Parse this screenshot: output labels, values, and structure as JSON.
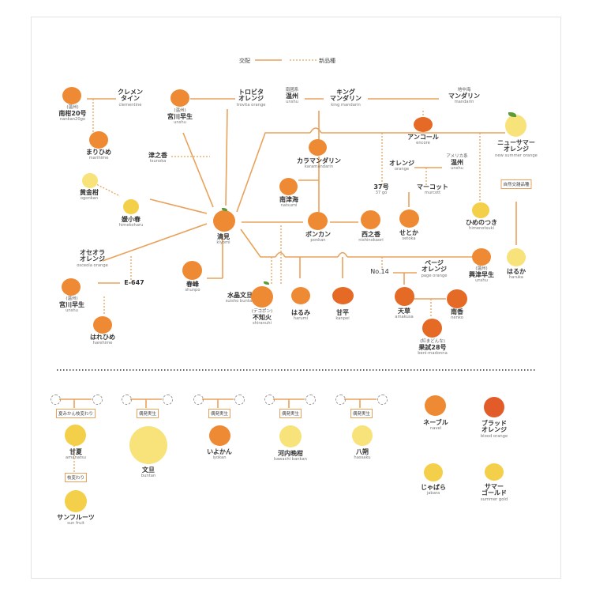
{
  "legend": {
    "cross_label": "交配",
    "variety_label": "新品種"
  },
  "colors": {
    "line": "#e9a25b",
    "orange": "#ef8a34",
    "deep": "#e46a26",
    "yellow": "#f4cf4a",
    "pale": "#f8e27a",
    "blood": "#e25c2a"
  },
  "upper": [
    {
      "id": "nankan20",
      "pre": "(温州)",
      "ja": "南柑20号",
      "ro": "nankan20go",
      "color": "orange"
    },
    {
      "id": "clementine",
      "ja": "クレメン\nタイン",
      "ro": "clementine"
    },
    {
      "id": "marihime",
      "ja": "まりひめ",
      "ro": "marihime",
      "color": "orange"
    },
    {
      "id": "miyagawa1",
      "pre": "(温州)",
      "ja": "宮川早生",
      "ro": "unshu",
      "color": "orange"
    },
    {
      "id": "trovita",
      "ja": "トロビタ\nオレンジ",
      "ro": "trovita orange"
    },
    {
      "id": "tsunoka",
      "ja": "津之香",
      "ro": "tsunoka"
    },
    {
      "id": "ogonkan",
      "ja": "黄金柑",
      "ro": "ogonkan",
      "color": "pale"
    },
    {
      "id": "himekoharu",
      "ja": "媛小春",
      "ro": "himekoharu",
      "color": "yellow"
    },
    {
      "id": "kiyomi",
      "ja": "清見",
      "ro": "kiyomi",
      "color": "orange"
    },
    {
      "id": "osceola",
      "ja": "オセオラ\nオレンジ",
      "ro": "osceola orange"
    },
    {
      "id": "e647",
      "ja": "E-647",
      "ro": ""
    },
    {
      "id": "miyagawa2",
      "pre": "(温州)",
      "ja": "宮川早生",
      "ro": "unshu",
      "color": "orange"
    },
    {
      "id": "harehime",
      "ja": "はれひめ",
      "ro": "harehime",
      "color": "orange"
    },
    {
      "id": "shunpo",
      "ja": "春峰",
      "ro": "shunpo",
      "color": "orange"
    },
    {
      "id": "suisho",
      "ja": "水晶文旦",
      "ro": "suisho buntan"
    },
    {
      "id": "nanshu_unshu",
      "pre": "南國系",
      "ja": "温州",
      "ro": "unshu"
    },
    {
      "id": "king",
      "ja": "キング\nマンダリン",
      "ro": "king mandarin"
    },
    {
      "id": "chichukai",
      "pre": "地中海",
      "ja": "マンダリン",
      "ro": "mandarin"
    },
    {
      "id": "encore",
      "ja": "アンコール",
      "ro": "encore",
      "color": "deep"
    },
    {
      "id": "newsummer",
      "ja": "ニューサマー\nオレンジ",
      "ro": "new summer orange",
      "color": "pale"
    },
    {
      "id": "karamandarin",
      "ja": "カラマンダリン",
      "ro": "karamandarin",
      "color": "orange"
    },
    {
      "id": "orange",
      "ja": "オレンジ",
      "ro": "orange"
    },
    {
      "id": "america_unshu",
      "pre": "アメリカ系",
      "ja": "温州",
      "ro": "unshu"
    },
    {
      "id": "go37",
      "ja": "37号",
      "ro": "37 go"
    },
    {
      "id": "murcott",
      "ja": "マーコット",
      "ro": "murcott"
    },
    {
      "id": "natsumi",
      "ja": "南津海",
      "ro": "natsumi",
      "color": "orange"
    },
    {
      "id": "ponkan",
      "ja": "ポンカン",
      "ro": "ponkan",
      "color": "orange"
    },
    {
      "id": "nishinokaori",
      "ja": "西之香",
      "ro": "nishinokaori",
      "color": "orange"
    },
    {
      "id": "setoka",
      "ja": "せとか",
      "ro": "setoka",
      "color": "orange"
    },
    {
      "id": "himenotsuki",
      "ja": "ひめのつき",
      "ro": "himenotsuki",
      "color": "yellow"
    },
    {
      "id": "haruka",
      "ja": "はるか",
      "ro": "haruka",
      "color": "pale"
    },
    {
      "id": "okitsu",
      "pre": "(温州)",
      "ja": "興津早生",
      "ro": "unshu",
      "color": "orange"
    },
    {
      "id": "page",
      "ja": "ページ\nオレンジ",
      "ro": "page orange"
    },
    {
      "id": "no14",
      "ja": "No.14",
      "ro": ""
    },
    {
      "id": "shiranuhi",
      "pre": "(デコポン)",
      "ja": "不知火",
      "ro": "shiranuhi",
      "color": "orange"
    },
    {
      "id": "harumi",
      "ja": "はるみ",
      "ro": "harumi",
      "color": "orange"
    },
    {
      "id": "kanpei",
      "ja": "甘平",
      "ro": "kanpei",
      "color": "deep"
    },
    {
      "id": "amakusa",
      "ja": "天草",
      "ro": "amakusa",
      "color": "deep"
    },
    {
      "id": "nanko",
      "ja": "南香",
      "ro": "nenko",
      "color": "deep"
    },
    {
      "id": "benimadonna",
      "pre": "(紅まどんな)",
      "ja": "果試28号",
      "ro": "beni-madonna",
      "color": "deep"
    }
  ],
  "tag_natural": "自然交雑品種",
  "lower": [
    {
      "id": "amanatsu",
      "tag": "夏みかん枝変わり",
      "ja": "甘夏",
      "ro": "amanatsu",
      "color": "yellow"
    },
    {
      "id": "sunfruit",
      "tag": "枝変わり",
      "ja": "サンフルーツ",
      "ro": "sun fruit",
      "color": "yellow"
    },
    {
      "id": "buntan",
      "tag": "偶発実生",
      "ja": "文旦",
      "ro": "buntan",
      "color": "pale"
    },
    {
      "id": "iyokan",
      "tag": "偶発実生",
      "ja": "いよかん",
      "ro": "iyokan",
      "color": "orange"
    },
    {
      "id": "kawachi",
      "tag": "偶発実生",
      "ja": "河内晩柑",
      "ro": "kawachi bankan",
      "color": "pale"
    },
    {
      "id": "hassaku",
      "tag": "偶発実生",
      "ja": "八朔",
      "ro": "hassaku",
      "color": "pale"
    },
    {
      "id": "navel",
      "ja": "ネーブル",
      "ro": "navel",
      "color": "orange"
    },
    {
      "id": "blood",
      "ja": "ブラッド\nオレンジ",
      "ro": "blood orange",
      "color": "blood"
    },
    {
      "id": "jabara",
      "ja": "じゃばら",
      "ro": "jabara",
      "color": "yellow"
    },
    {
      "id": "summergold",
      "ja": "サマー\nゴールド",
      "ro": "summer gold",
      "color": "yellow"
    }
  ]
}
